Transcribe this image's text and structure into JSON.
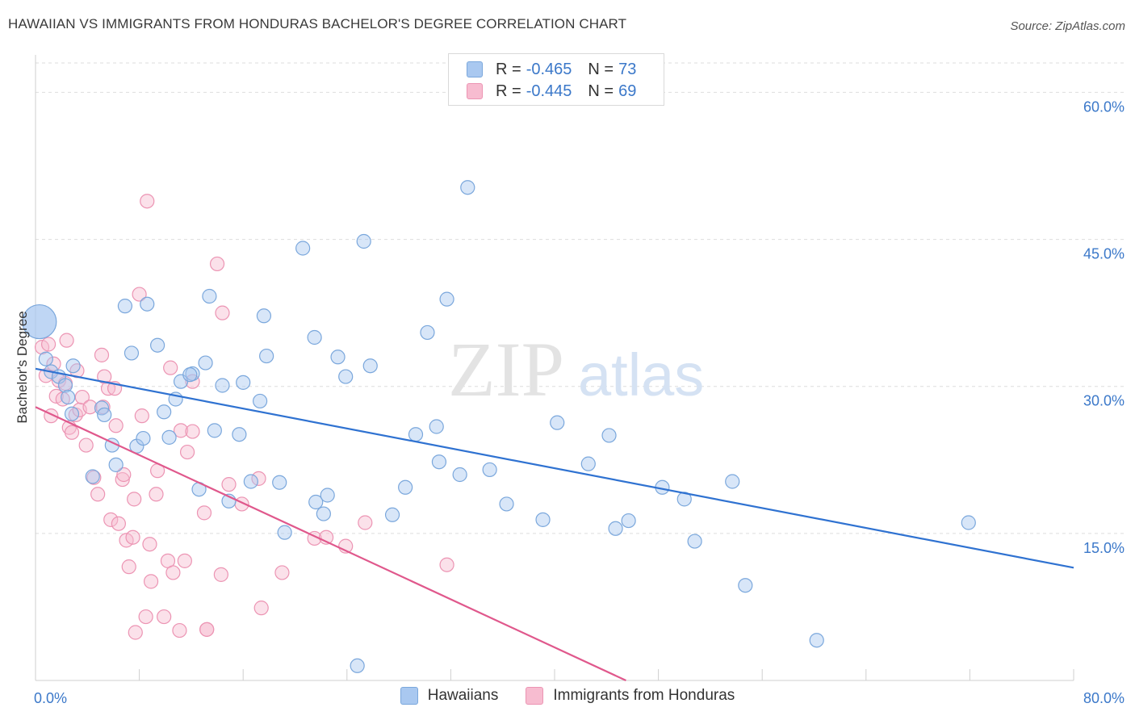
{
  "header": {
    "title": "HAWAIIAN VS IMMIGRANTS FROM HONDURAS BACHELOR'S DEGREE CORRELATION CHART",
    "source": "Source: ZipAtlas.com"
  },
  "legend": {
    "series1": {
      "r_label": "R =",
      "r_value": "-0.465",
      "n_label": "N =",
      "n_value": "73"
    },
    "series2": {
      "r_label": "R =",
      "r_value": "-0.445",
      "n_label": "N =",
      "n_value": "69"
    }
  },
  "bottom_legend": {
    "series1": "Hawaiians",
    "series2": "Immigrants from Honduras"
  },
  "colors": {
    "series1_fill": "#a9c8f0",
    "series1_stroke": "#7aa7dc",
    "series1_line": "#2f72d1",
    "series2_fill": "#f7bcd0",
    "series2_stroke": "#ec94b3",
    "series2_line": "#e0588c",
    "accent_text": "#3b78c9",
    "grid": "#dddddd"
  },
  "watermark": {
    "part1": "ZIP",
    "part2": "atlas"
  },
  "chart_data": {
    "type": "scatter",
    "title": "HAWAIIAN VS IMMIGRANTS FROM HONDURAS BACHELOR'S DEGREE CORRELATION CHART",
    "xlabel": "",
    "ylabel": "Bachelor's Degree",
    "xlim": [
      0,
      80
    ],
    "ylim": [
      0,
      63
    ],
    "x_tick_labels": [
      "0.0%",
      "80.0%"
    ],
    "y_ticks": [
      15,
      30,
      45,
      60
    ],
    "y_tick_labels": [
      "15.0%",
      "30.0%",
      "45.0%",
      "60.0%"
    ],
    "grid": "horizontal dashed",
    "legend_position": "top-center",
    "series": [
      {
        "name": "Hawaiians",
        "trend": {
          "x": [
            0,
            80
          ],
          "y": [
            31.8,
            11.5
          ]
        },
        "points": [
          [
            0.3,
            36.6
          ],
          [
            0.8,
            32.8
          ],
          [
            1.2,
            31.5
          ],
          [
            1.8,
            31.0
          ],
          [
            2.3,
            30.1
          ],
          [
            2.5,
            28.9
          ],
          [
            2.8,
            27.2
          ],
          [
            2.9,
            32.1
          ],
          [
            4.4,
            20.8
          ],
          [
            5.1,
            27.8
          ],
          [
            5.3,
            27.1
          ],
          [
            5.9,
            24.0
          ],
          [
            6.2,
            22.0
          ],
          [
            6.9,
            38.2
          ],
          [
            7.4,
            33.4
          ],
          [
            7.8,
            23.9
          ],
          [
            8.3,
            24.7
          ],
          [
            8.6,
            38.4
          ],
          [
            9.4,
            34.2
          ],
          [
            9.9,
            27.4
          ],
          [
            10.3,
            24.8
          ],
          [
            10.8,
            28.7
          ],
          [
            11.2,
            30.5
          ],
          [
            12.1,
            31.3
          ],
          [
            12.6,
            19.5
          ],
          [
            13.1,
            32.4
          ],
          [
            13.4,
            39.2
          ],
          [
            13.8,
            25.5
          ],
          [
            14.4,
            30.1
          ],
          [
            14.9,
            18.3
          ],
          [
            15.7,
            25.1
          ],
          [
            16.0,
            30.4
          ],
          [
            16.6,
            20.3
          ],
          [
            17.3,
            28.5
          ],
          [
            17.6,
            37.2
          ],
          [
            17.8,
            33.1
          ],
          [
            18.8,
            20.2
          ],
          [
            19.2,
            15.1
          ],
          [
            20.6,
            44.1
          ],
          [
            21.5,
            35.0
          ],
          [
            21.6,
            18.2
          ],
          [
            22.2,
            17.0
          ],
          [
            22.5,
            18.9
          ],
          [
            23.3,
            33.0
          ],
          [
            23.9,
            31.0
          ],
          [
            24.8,
            1.5
          ],
          [
            25.3,
            44.8
          ],
          [
            25.8,
            32.1
          ],
          [
            27.5,
            16.9
          ],
          [
            28.5,
            19.7
          ],
          [
            29.3,
            25.1
          ],
          [
            30.2,
            35.5
          ],
          [
            30.9,
            25.9
          ],
          [
            31.1,
            22.3
          ],
          [
            31.7,
            38.9
          ],
          [
            32.7,
            21.0
          ],
          [
            33.3,
            50.3
          ],
          [
            35.0,
            21.5
          ],
          [
            36.3,
            18.0
          ],
          [
            39.1,
            16.4
          ],
          [
            40.2,
            26.3
          ],
          [
            42.6,
            22.1
          ],
          [
            44.2,
            25.0
          ],
          [
            44.7,
            15.5
          ],
          [
            45.7,
            16.3
          ],
          [
            48.3,
            19.7
          ],
          [
            50.0,
            18.5
          ],
          [
            50.8,
            14.2
          ],
          [
            53.7,
            20.3
          ],
          [
            54.7,
            9.7
          ],
          [
            60.2,
            4.1
          ],
          [
            71.9,
            16.1
          ],
          [
            11.9,
            31.2
          ]
        ]
      },
      {
        "name": "Immigrants from Honduras",
        "trend": {
          "x": [
            0,
            45.5
          ],
          "y": [
            27.9,
            0
          ]
        },
        "points": [
          [
            0.5,
            34.0
          ],
          [
            0.8,
            31.1
          ],
          [
            1.0,
            34.3
          ],
          [
            1.2,
            27.0
          ],
          [
            1.4,
            32.3
          ],
          [
            1.6,
            29.0
          ],
          [
            1.8,
            30.6
          ],
          [
            2.1,
            28.7
          ],
          [
            2.3,
            30.3
          ],
          [
            2.4,
            34.7
          ],
          [
            2.6,
            25.8
          ],
          [
            2.8,
            25.3
          ],
          [
            3.1,
            27.1
          ],
          [
            3.2,
            31.6
          ],
          [
            3.4,
            27.6
          ],
          [
            3.6,
            28.9
          ],
          [
            3.9,
            24.0
          ],
          [
            4.2,
            27.9
          ],
          [
            4.5,
            20.7
          ],
          [
            4.8,
            19.0
          ],
          [
            5.1,
            33.2
          ],
          [
            5.2,
            27.9
          ],
          [
            5.3,
            31.0
          ],
          [
            5.6,
            29.8
          ],
          [
            5.8,
            16.4
          ],
          [
            6.1,
            29.8
          ],
          [
            6.2,
            26.0
          ],
          [
            6.4,
            16.0
          ],
          [
            6.7,
            20.5
          ],
          [
            6.8,
            21.0
          ],
          [
            7.0,
            14.3
          ],
          [
            7.2,
            11.6
          ],
          [
            7.5,
            14.6
          ],
          [
            7.6,
            18.5
          ],
          [
            7.7,
            4.9
          ],
          [
            8.0,
            39.4
          ],
          [
            8.2,
            27.0
          ],
          [
            8.5,
            6.5
          ],
          [
            8.6,
            48.9
          ],
          [
            8.8,
            13.9
          ],
          [
            8.9,
            10.1
          ],
          [
            9.3,
            19.0
          ],
          [
            9.4,
            21.4
          ],
          [
            9.9,
            6.5
          ],
          [
            10.2,
            12.2
          ],
          [
            10.4,
            31.9
          ],
          [
            10.6,
            11.0
          ],
          [
            11.1,
            5.1
          ],
          [
            11.2,
            25.5
          ],
          [
            11.5,
            12.2
          ],
          [
            11.7,
            23.3
          ],
          [
            12.1,
            25.4
          ],
          [
            12.1,
            30.5
          ],
          [
            13.0,
            17.1
          ],
          [
            13.2,
            5.2
          ],
          [
            14.0,
            42.5
          ],
          [
            14.3,
            10.8
          ],
          [
            14.4,
            37.5
          ],
          [
            14.9,
            20.0
          ],
          [
            15.9,
            18.0
          ],
          [
            17.2,
            20.6
          ],
          [
            17.4,
            7.4
          ],
          [
            19.0,
            11.0
          ],
          [
            21.5,
            14.5
          ],
          [
            22.4,
            14.6
          ],
          [
            23.9,
            13.7
          ],
          [
            25.4,
            16.1
          ],
          [
            31.7,
            11.8
          ],
          [
            13.2,
            5.2
          ]
        ]
      }
    ]
  }
}
